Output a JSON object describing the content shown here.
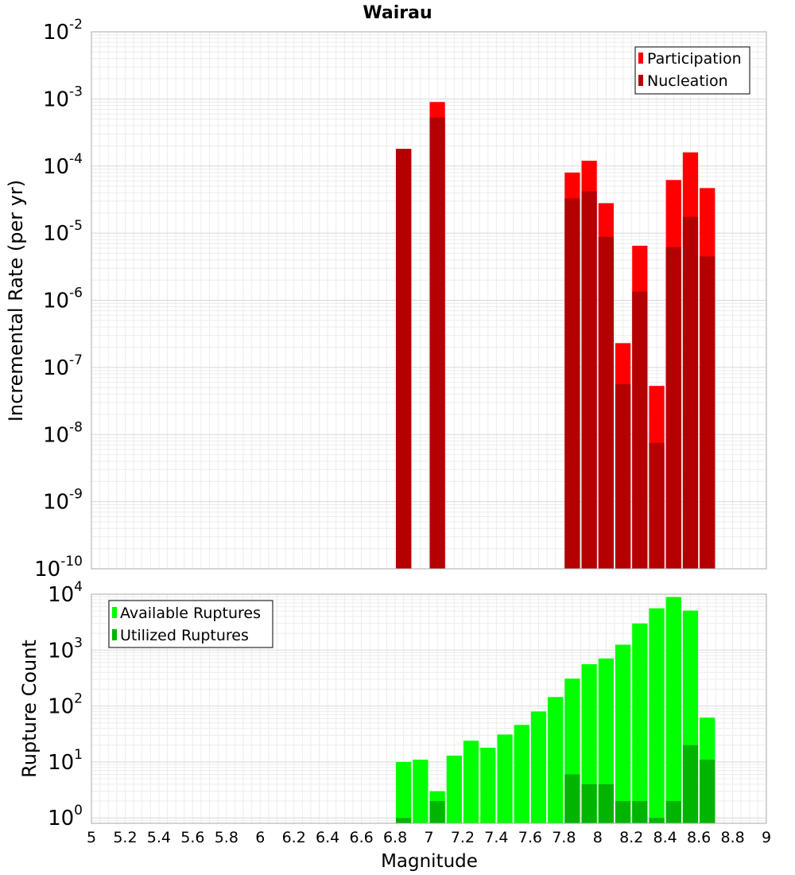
{
  "chart_data": [
    {
      "type": "bar",
      "title": "Wairau",
      "ylabel": "Incremental Rate (per yr)",
      "xlabel": "",
      "log_y": true,
      "ylim": [
        1e-10,
        0.01
      ],
      "xlim": [
        5,
        9
      ],
      "y_ticks": [
        {
          "base": "10",
          "exp": "-2"
        },
        {
          "base": "10",
          "exp": "-3"
        },
        {
          "base": "10",
          "exp": "-4"
        },
        {
          "base": "10",
          "exp": "-5"
        },
        {
          "base": "10",
          "exp": "-6"
        },
        {
          "base": "10",
          "exp": "-7"
        },
        {
          "base": "10",
          "exp": "-8"
        },
        {
          "base": "10",
          "exp": "-9"
        },
        {
          "base": "10",
          "exp": "-10"
        }
      ],
      "grid": true,
      "legend_position": "top-right",
      "series": [
        {
          "name": "Participation",
          "color": "#ff0000",
          "x": [
            6.85,
            7.05,
            7.85,
            7.95,
            8.05,
            8.15,
            8.25,
            8.35,
            8.45,
            8.55,
            8.65
          ],
          "values": [
            0.00018,
            0.0009,
            8e-05,
            0.00012,
            2.8e-05,
            2.3e-07,
            6.5e-06,
            5.3e-08,
            6.2e-05,
            0.00016,
            4.7e-05
          ]
        },
        {
          "name": "Nucleation",
          "color": "#b40000",
          "x": [
            6.85,
            7.05,
            7.85,
            7.95,
            8.05,
            8.15,
            8.25,
            8.35,
            8.45,
            8.55,
            8.65
          ],
          "values": [
            0.00018,
            0.00053,
            3.3e-05,
            4.2e-05,
            8.8e-06,
            5.6e-08,
            1.35e-06,
            7.5e-09,
            6.2e-06,
            1.75e-05,
            4.5e-06
          ]
        }
      ]
    },
    {
      "type": "bar",
      "title": "",
      "ylabel": "Rupture Count",
      "xlabel": "Magnitude",
      "log_y": true,
      "ylim": [
        0.8,
        10000
      ],
      "xlim": [
        5,
        9
      ],
      "x_ticks": [
        "5",
        "5.2",
        "5.4",
        "5.6",
        "5.8",
        "6",
        "6.2",
        "6.4",
        "6.6",
        "6.8",
        "7",
        "7.2",
        "7.4",
        "7.6",
        "7.8",
        "8",
        "8.2",
        "8.4",
        "8.6",
        "8.8",
        "9"
      ],
      "y_ticks": [
        {
          "base": "10",
          "exp": "0"
        },
        {
          "base": "10",
          "exp": "1"
        },
        {
          "base": "10",
          "exp": "2"
        },
        {
          "base": "10",
          "exp": "3"
        },
        {
          "base": "10",
          "exp": "4"
        }
      ],
      "grid": true,
      "legend_position": "top-left",
      "series": [
        {
          "name": "Available Ruptures",
          "color": "#00ff00",
          "x": [
            6.85,
            6.95,
            7.05,
            7.15,
            7.25,
            7.35,
            7.45,
            7.55,
            7.65,
            7.75,
            7.85,
            7.95,
            8.05,
            8.15,
            8.25,
            8.35,
            8.45,
            8.55,
            8.65
          ],
          "values": [
            10,
            11,
            3,
            13,
            24,
            18,
            31,
            46,
            80,
            145,
            310,
            560,
            710,
            1250,
            3000,
            5600,
            8900,
            5100,
            62
          ]
        },
        {
          "name": "Utilized Ruptures",
          "color": "#00b400",
          "x": [
            6.85,
            7.05,
            7.85,
            7.95,
            8.05,
            8.15,
            8.25,
            8.35,
            8.45,
            8.55,
            8.65
          ],
          "values": [
            1,
            2,
            6,
            4,
            4,
            2,
            2,
            1,
            2,
            20,
            11
          ]
        }
      ]
    }
  ]
}
